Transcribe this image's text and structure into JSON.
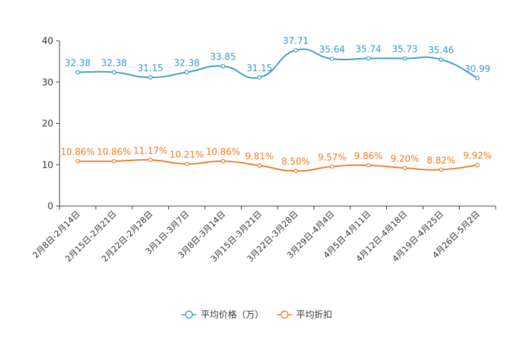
{
  "chart_data": {
    "type": "line",
    "categories": [
      "2月8日-2月14日",
      "2月15日-2月21日",
      "2月22日-2月28日",
      "3月1日-3月7日",
      "3月8日-3月14日",
      "3月15日-3月21日",
      "3月22日-3月28日",
      "3月29日-4月4日",
      "4月5日-4月11日",
      "4月12日-4月18日",
      "4月19日-4月25日",
      "4月26日-5月2日"
    ],
    "ylim": [
      0,
      40
    ],
    "yticks": [
      "0",
      "10",
      "20",
      "30",
      "40"
    ],
    "series": [
      {
        "name": "平均价格（万）",
        "color": "#3399cc",
        "values": [
          32.38,
          32.38,
          31.15,
          32.38,
          33.85,
          31.15,
          37.71,
          35.64,
          35.74,
          35.73,
          35.46,
          30.99
        ],
        "labels": [
          "32.38",
          "32.38",
          "31.15",
          "32.38",
          "33.85",
          "31.15",
          "37.71",
          "35.64",
          "35.74",
          "35.73",
          "35.46",
          "30.99"
        ]
      },
      {
        "name": "平均折扣",
        "color": "#f07820",
        "values": [
          10.86,
          10.86,
          11.17,
          10.21,
          10.86,
          9.81,
          8.5,
          9.57,
          9.86,
          9.2,
          8.82,
          9.92
        ],
        "labels": [
          "10.86%",
          "10.86%",
          "11.17%",
          "10.21%",
          "10.86%",
          "9.81%",
          "8.50%",
          "9.57%",
          "9.86%",
          "9.20%",
          "8.82%",
          "9.92%"
        ]
      }
    ],
    "legend_position": "bottom-center",
    "grid": false
  }
}
